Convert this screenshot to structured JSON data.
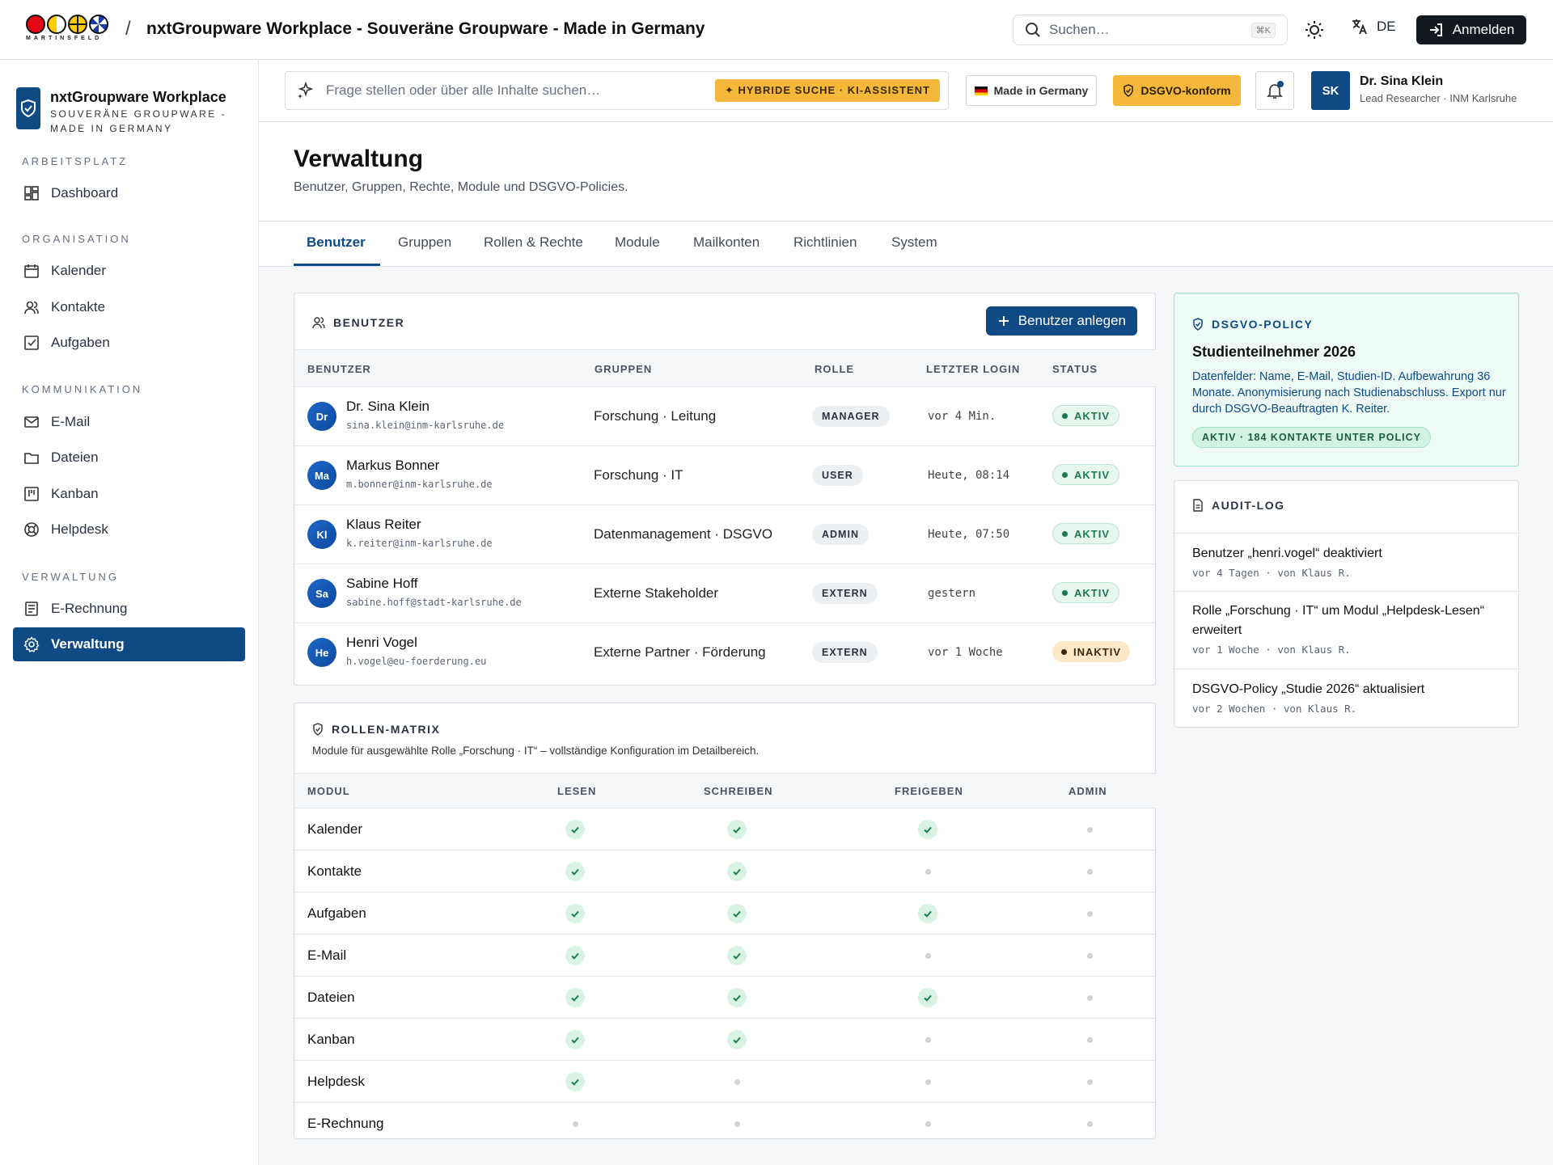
{
  "topbar": {
    "logo_text": "MARTINSFELD",
    "app_title": "nxtGroupware Workplace - Souveräne Groupware - Made in Germany",
    "search_placeholder": "Suchen…",
    "search_shortcut": "⌘K",
    "language": "DE",
    "login_label": "Anmelden"
  },
  "sidebar": {
    "brand_name": "nxtGroupware Workplace",
    "brand_sub_1": "SOUVERÄNE GROUPWARE -",
    "brand_sub_2": "MADE IN GERMANY",
    "groups": [
      {
        "label": "ARBEITSPLATZ"
      },
      {
        "label": "ORGANISATION"
      },
      {
        "label": "KOMMUNIKATION"
      },
      {
        "label": "VERWALTUNG"
      }
    ],
    "items": [
      {
        "label": "Dashboard",
        "icon": "dashboard-icon"
      },
      {
        "label": "Kalender",
        "icon": "calendar-icon"
      },
      {
        "label": "Kontakte",
        "icon": "contacts-icon"
      },
      {
        "label": "Aufgaben",
        "icon": "tasks-icon"
      },
      {
        "label": "E-Mail",
        "icon": "mail-icon"
      },
      {
        "label": "Dateien",
        "icon": "folder-icon"
      },
      {
        "label": "Kanban",
        "icon": "kanban-icon"
      },
      {
        "label": "Helpdesk",
        "icon": "helpdesk-icon"
      },
      {
        "label": "E-Rechnung",
        "icon": "invoice-icon"
      },
      {
        "label": "Verwaltung",
        "icon": "settings-icon",
        "active": true
      }
    ]
  },
  "header": {
    "ask_placeholder": "Frage stellen oder über alle Inhalte suchen…",
    "ai_tag": "HYBRIDE SUCHE · KI-ASSISTENT",
    "made_in_germany": "Made in Germany",
    "dsgvo_badge": "DSGVO-konform",
    "user_initials": "SK",
    "user_name": "Dr. Sina Klein",
    "user_role": "Lead Researcher · INM Karlsruhe"
  },
  "page": {
    "title": "Verwaltung",
    "subtitle": "Benutzer, Gruppen, Rechte, Module und DSGVO-Policies."
  },
  "tabs": [
    "Benutzer",
    "Gruppen",
    "Rollen & Rechte",
    "Module",
    "Mailkonten",
    "Richtlinien",
    "System"
  ],
  "users_card": {
    "title": "BENUTZER",
    "add_button": "Benutzer anlegen",
    "columns": [
      "BENUTZER",
      "GRUPPEN",
      "ROLLE",
      "LETZTER LOGIN",
      "STATUS"
    ],
    "rows": [
      {
        "initials": "Dr",
        "name": "Dr. Sina Klein",
        "email": "sina.klein@inm-karlsruhe.de",
        "groups": "Forschung · Leitung",
        "role": "MANAGER",
        "login": "vor 4 Min.",
        "status": "AKTIV"
      },
      {
        "initials": "Ma",
        "name": "Markus Bonner",
        "email": "m.bonner@inm-karlsruhe.de",
        "groups": "Forschung · IT",
        "role": "USER",
        "login": "Heute, 08:14",
        "status": "AKTIV"
      },
      {
        "initials": "Kl",
        "name": "Klaus Reiter",
        "email": "k.reiter@inm-karlsruhe.de",
        "groups": "Datenmanagement · DSGVO",
        "role": "ADMIN",
        "login": "Heute, 07:50",
        "status": "AKTIV"
      },
      {
        "initials": "Sa",
        "name": "Sabine Hoff",
        "email": "sabine.hoff@stadt-karlsruhe.de",
        "groups": "Externe Stakeholder",
        "role": "EXTERN",
        "login": "gestern",
        "status": "AKTIV"
      },
      {
        "initials": "He",
        "name": "Henri Vogel",
        "email": "h.vogel@eu-foerderung.eu",
        "groups": "Externe Partner · Förderung",
        "role": "EXTERN",
        "login": "vor 1 Woche",
        "status": "INAKTIV"
      }
    ]
  },
  "matrix_card": {
    "title": "ROLLEN-MATRIX",
    "subtitle": "Module für ausgewählte Rolle „Forschung · IT“ – vollständige Konfiguration im Detailbereich.",
    "columns": [
      "MODUL",
      "LESEN",
      "SCHREIBEN",
      "FREIGEBEN",
      "ADMIN"
    ],
    "rows": [
      {
        "module": "Kalender",
        "perms": [
          true,
          true,
          true,
          false
        ]
      },
      {
        "module": "Kontakte",
        "perms": [
          true,
          true,
          false,
          false
        ]
      },
      {
        "module": "Aufgaben",
        "perms": [
          true,
          true,
          true,
          false
        ]
      },
      {
        "module": "E-Mail",
        "perms": [
          true,
          true,
          false,
          false
        ]
      },
      {
        "module": "Dateien",
        "perms": [
          true,
          true,
          true,
          false
        ]
      },
      {
        "module": "Kanban",
        "perms": [
          true,
          true,
          false,
          false
        ]
      },
      {
        "module": "Helpdesk",
        "perms": [
          true,
          false,
          false,
          false
        ]
      },
      {
        "module": "E-Rechnung",
        "perms": [
          false,
          false,
          false,
          false
        ]
      }
    ]
  },
  "policy": {
    "heading": "DSGVO-POLICY",
    "title": "Studienteilnehmer 2026",
    "description": "Datenfelder: Name, E-Mail, Studien-ID. Aufbewahrung 36 Monate. Anonymisierung nach Studienabschluss. Export nur durch DSGVO-Beauftragten K. Reiter.",
    "tag": "AKTIV · 184 KONTAKTE UNTER POLICY"
  },
  "audit": {
    "title": "AUDIT-LOG",
    "items": [
      {
        "text": "Benutzer „henri.vogel“ deaktiviert",
        "meta": "vor 4 Tagen · von Klaus R."
      },
      {
        "text": "Rolle „Forschung · IT“ um Modul „Helpdesk-Lesen“ erweitert",
        "meta": "vor 1 Woche · von Klaus R."
      },
      {
        "text": "DSGVO-Policy „Studie 2026“ aktualisiert",
        "meta": "vor 2 Wochen · von Klaus R."
      }
    ]
  },
  "colors": {
    "primary": "#0f4a84",
    "accent": "#f5b83a",
    "success": "#1d7a4a"
  }
}
